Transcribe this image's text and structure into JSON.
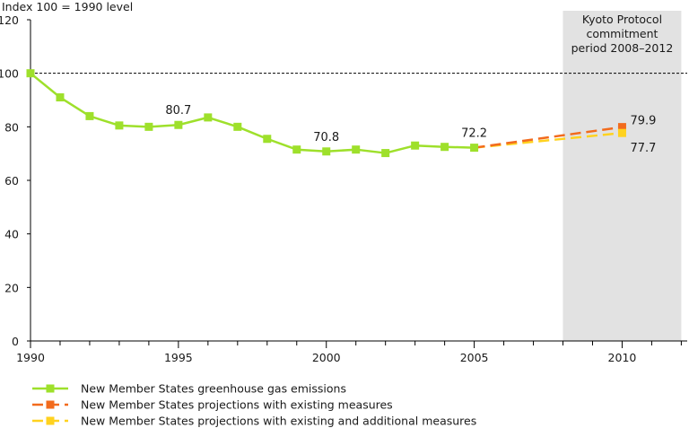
{
  "chart_data": {
    "type": "line",
    "ylabel": "Index 100 = 1990 level",
    "ylim": [
      0,
      120
    ],
    "yticks": [
      "0",
      "20",
      "40",
      "60",
      "80",
      "100",
      "120"
    ],
    "xlim": [
      1990,
      2012.2
    ],
    "xticks": [
      "1990",
      "1995",
      "2000",
      "2005",
      "2010"
    ],
    "reference_line": 100,
    "shaded_region": {
      "x": [
        2008,
        2012
      ],
      "label": [
        "Kyoto Protocol",
        "commitment",
        "period 2008–2012"
      ]
    },
    "series": [
      {
        "name": "New Member States greenhouse gas emissions",
        "style": "solid",
        "color": "#9ee02b",
        "x": [
          1990,
          1991,
          1992,
          1993,
          1994,
          1995,
          1996,
          1997,
          1998,
          1999,
          2000,
          2001,
          2002,
          2003,
          2004,
          2005
        ],
        "values": [
          100,
          91,
          84,
          80.5,
          80,
          80.7,
          83.5,
          80,
          75.5,
          71.5,
          70.8,
          71.5,
          70.2,
          73,
          72.5,
          72.2
        ]
      },
      {
        "name": "New Member States projections with existing measures",
        "style": "dashed",
        "color": "#f26b1d",
        "x": [
          2005,
          2010
        ],
        "values": [
          72.2,
          79.9
        ]
      },
      {
        "name": "New Member States projections with existing and additional measures",
        "style": "dashed",
        "color": "#ffd21f",
        "x": [
          2005,
          2010
        ],
        "values": [
          72.2,
          77.7
        ]
      }
    ],
    "annotations": [
      {
        "x": 1995,
        "y": 80.7,
        "text": "80.7"
      },
      {
        "x": 2000,
        "y": 70.8,
        "text": "70.8"
      },
      {
        "x": 2005,
        "y": 72.2,
        "text": "72.2"
      },
      {
        "x": 2010,
        "y": 79.9,
        "text": "79.9"
      },
      {
        "x": 2010,
        "y": 77.7,
        "text": "77.7"
      }
    ],
    "legend_position": "bottom-left"
  }
}
